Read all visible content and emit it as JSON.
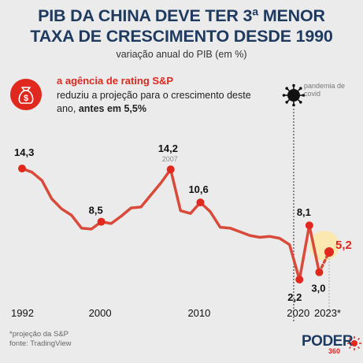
{
  "header": {
    "title_line1": "PIB DA CHINA DEVE TER 3ª MENOR",
    "title_line2": "TAXA DE CRESCIMENTO DESDE 1990",
    "subtitle": "variação anual do PIB (em %)"
  },
  "note": {
    "title": "a agência de rating S&P",
    "body_prefix": "reduziu a projeção para o crescimento deste ano, ",
    "body_bold": "antes em 5,5%",
    "icon": "money-bag-icon"
  },
  "covid": {
    "label": "pandemia de covid",
    "icon": "virus-icon"
  },
  "footnote": {
    "line1": "*projeção da S&P",
    "line2": "fonte: TradingView"
  },
  "logo": {
    "name": "PODER",
    "suffix": "360"
  },
  "colors": {
    "line": "#d94a3a",
    "point": "#e0281f",
    "title": "#1f3a5f",
    "highlight": "#fbe7b0"
  },
  "chart_data": {
    "type": "line",
    "title": "PIB DA CHINA DEVE TER 3ª MENOR TAXA DE CRESCIMENTO DESDE 1990",
    "ylabel": "",
    "xlabel": "",
    "x_ticks": [
      "1992",
      "2000",
      "2010",
      "2020",
      "2023*"
    ],
    "ylim": [
      1.5,
      15
    ],
    "series": [
      {
        "x": [
          1992,
          1993,
          1994,
          1995,
          1996,
          1997,
          1998,
          1999,
          2000,
          2001,
          2002,
          2003,
          2004,
          2005,
          2006,
          2007,
          2008,
          2009,
          2010,
          2011,
          2012,
          2013,
          2014,
          2015,
          2016,
          2017,
          2018,
          2019,
          2020,
          2021,
          2022
        ],
        "values": [
          14.3,
          13.9,
          13.0,
          11.0,
          9.9,
          9.2,
          7.8,
          7.7,
          8.5,
          8.3,
          9.1,
          10.0,
          10.1,
          11.4,
          12.7,
          14.2,
          9.7,
          9.4,
          10.6,
          9.6,
          7.9,
          7.8,
          7.4,
          7.0,
          6.8,
          6.9,
          6.7,
          6.0,
          2.2,
          8.1,
          3.0
        ]
      }
    ],
    "projection": {
      "x": [
        2022,
        2023
      ],
      "values": [
        3.0,
        5.2
      ]
    },
    "labeled_points": [
      {
        "x": 1992,
        "value": 14.3,
        "text": "14,3"
      },
      {
        "x": 2000,
        "value": 8.5,
        "text": "8,5"
      },
      {
        "x": 2007,
        "value": 14.2,
        "text": "14,2",
        "sublabel": "2007"
      },
      {
        "x": 2010,
        "value": 10.6,
        "text": "10,6"
      },
      {
        "x": 2020,
        "value": 2.2,
        "text": "2,2"
      },
      {
        "x": 2021,
        "value": 8.1,
        "text": "8,1"
      },
      {
        "x": 2022,
        "value": 3.0,
        "text": "3,0"
      },
      {
        "x": 2023,
        "value": 5.2,
        "text": "5,2"
      }
    ]
  }
}
